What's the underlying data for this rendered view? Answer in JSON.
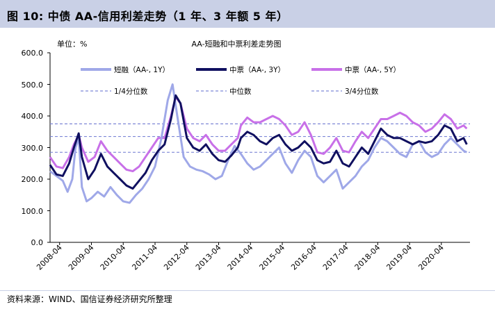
{
  "header": {
    "title": "图  10:  中债 AA-信用利差走势（1 年、3 年额 5 年）"
  },
  "footer": {
    "source": "资料来源：WIND、国信证券经济研究所整理"
  },
  "colors": {
    "title_bg": "#c9d0e6",
    "series_1y": "#9fa8e8",
    "series_3y": "#101060",
    "series_5y": "#c870e8",
    "ref_lines": "#7d86d6"
  },
  "chart_data": {
    "type": "line",
    "title": "AA-短融和中票利差走势图",
    "unit_label": "单位：%",
    "xlabel": "",
    "ylabel": "",
    "ylim": [
      0,
      600
    ],
    "yticks": [
      "0.0",
      "100.0",
      "200.0",
      "300.0",
      "400.0",
      "500.0",
      "600.0"
    ],
    "grid": false,
    "legend_placement": "top",
    "x_categories": [
      "2008-04",
      "2009-04",
      "2010-04",
      "2011-04",
      "2012-04",
      "2013-04",
      "2014-04",
      "2015-04",
      "2016-04",
      "2017-04",
      "2018-04",
      "2019-04",
      "2020-04"
    ],
    "x_range": [
      2008.0,
      2021.2
    ],
    "series": [
      {
        "name": "短融（AA-, 1Y）",
        "key": "s1y",
        "x": [
          2008.0,
          2008.2,
          2008.4,
          2008.55,
          2008.7,
          2008.8,
          2008.9,
          2009.0,
          2009.15,
          2009.3,
          2009.5,
          2009.7,
          2009.9,
          2010.1,
          2010.3,
          2010.5,
          2010.7,
          2010.9,
          2011.1,
          2011.3,
          2011.5,
          2011.7,
          2011.85,
          2012.0,
          2012.2,
          2012.4,
          2012.6,
          2012.8,
          2013.0,
          2013.2,
          2013.4,
          2013.6,
          2013.8,
          2014.0,
          2014.2,
          2014.4,
          2014.6,
          2014.8,
          2015.0,
          2015.2,
          2015.4,
          2015.6,
          2015.8,
          2016.0,
          2016.2,
          2016.4,
          2016.6,
          2016.8,
          2017.0,
          2017.2,
          2017.4,
          2017.6,
          2017.8,
          2018.0,
          2018.2,
          2018.4,
          2018.6,
          2018.8,
          2019.0,
          2019.2,
          2019.4,
          2019.6,
          2019.8,
          2020.0,
          2020.2,
          2020.4,
          2020.6,
          2020.8,
          2021.0,
          2021.1
        ],
        "values": [
          225,
          210,
          195,
          160,
          200,
          300,
          330,
          175,
          130,
          140,
          160,
          145,
          175,
          150,
          130,
          125,
          150,
          170,
          200,
          240,
          330,
          450,
          500,
          400,
          270,
          240,
          230,
          225,
          215,
          200,
          210,
          260,
          305,
          280,
          250,
          230,
          240,
          260,
          280,
          300,
          250,
          220,
          260,
          290,
          270,
          210,
          190,
          210,
          230,
          170,
          190,
          210,
          240,
          260,
          300,
          330,
          320,
          300,
          280,
          270,
          310,
          320,
          285,
          270,
          280,
          310,
          330,
          310,
          290,
          285
        ]
      },
      {
        "name": "中票（AA-, 3Y）",
        "key": "s3y",
        "x": [
          2008.0,
          2008.2,
          2008.4,
          2008.6,
          2008.75,
          2008.9,
          2009.0,
          2009.2,
          2009.4,
          2009.6,
          2009.8,
          2010.0,
          2010.2,
          2010.4,
          2010.6,
          2010.8,
          2011.0,
          2011.2,
          2011.4,
          2011.6,
          2011.8,
          2011.95,
          2012.1,
          2012.3,
          2012.5,
          2012.7,
          2012.9,
          2013.1,
          2013.3,
          2013.5,
          2013.7,
          2013.9,
          2014.0,
          2014.2,
          2014.4,
          2014.6,
          2014.8,
          2015.0,
          2015.2,
          2015.4,
          2015.6,
          2015.8,
          2016.0,
          2016.2,
          2016.4,
          2016.6,
          2016.8,
          2017.0,
          2017.2,
          2017.4,
          2017.6,
          2017.8,
          2018.0,
          2018.2,
          2018.4,
          2018.6,
          2018.8,
          2019.0,
          2019.2,
          2019.4,
          2019.6,
          2019.8,
          2020.0,
          2020.2,
          2020.4,
          2020.6,
          2020.8,
          2021.0,
          2021.1
        ],
        "values": [
          245,
          215,
          210,
          250,
          300,
          345,
          270,
          200,
          230,
          280,
          240,
          220,
          200,
          180,
          170,
          195,
          220,
          260,
          290,
          310,
          390,
          465,
          440,
          330,
          300,
          290,
          310,
          280,
          260,
          255,
          275,
          300,
          330,
          350,
          340,
          320,
          310,
          330,
          340,
          310,
          290,
          300,
          320,
          300,
          260,
          250,
          255,
          290,
          250,
          240,
          270,
          300,
          280,
          320,
          360,
          340,
          330,
          330,
          320,
          310,
          320,
          315,
          320,
          340,
          370,
          360,
          320,
          330,
          310
        ]
      },
      {
        "name": "中票（AA-, 5Y）",
        "key": "s5y",
        "x": [
          2008.0,
          2008.2,
          2008.4,
          2008.6,
          2008.75,
          2008.9,
          2009.0,
          2009.2,
          2009.4,
          2009.6,
          2009.8,
          2010.0,
          2010.2,
          2010.4,
          2010.6,
          2010.8,
          2011.0,
          2011.2,
          2011.4,
          2011.6,
          2011.8,
          2011.95,
          2012.1,
          2012.3,
          2012.5,
          2012.7,
          2012.9,
          2013.1,
          2013.3,
          2013.5,
          2013.7,
          2013.9,
          2014.0,
          2014.2,
          2014.4,
          2014.6,
          2014.8,
          2015.0,
          2015.2,
          2015.4,
          2015.6,
          2015.8,
          2016.0,
          2016.2,
          2016.4,
          2016.6,
          2016.8,
          2017.0,
          2017.2,
          2017.4,
          2017.6,
          2017.8,
          2018.0,
          2018.2,
          2018.4,
          2018.6,
          2018.8,
          2019.0,
          2019.2,
          2019.4,
          2019.6,
          2019.8,
          2020.0,
          2020.2,
          2020.4,
          2020.6,
          2020.8,
          2021.0,
          2021.1
        ],
        "values": [
          270,
          240,
          235,
          270,
          310,
          340,
          300,
          255,
          270,
          320,
          290,
          270,
          250,
          230,
          225,
          240,
          270,
          300,
          330,
          330,
          400,
          460,
          440,
          360,
          330,
          320,
          340,
          310,
          290,
          290,
          310,
          330,
          370,
          395,
          380,
          380,
          390,
          400,
          390,
          370,
          340,
          350,
          380,
          340,
          285,
          280,
          300,
          330,
          290,
          285,
          320,
          350,
          330,
          360,
          390,
          390,
          400,
          410,
          400,
          380,
          370,
          350,
          360,
          380,
          405,
          390,
          360,
          370,
          360
        ]
      }
    ],
    "reference_lines": [
      {
        "label": "1/4分位数",
        "value": 285
      },
      {
        "label": "中位数",
        "value": 335
      },
      {
        "label": "3/4分位数",
        "value": 375
      }
    ]
  }
}
